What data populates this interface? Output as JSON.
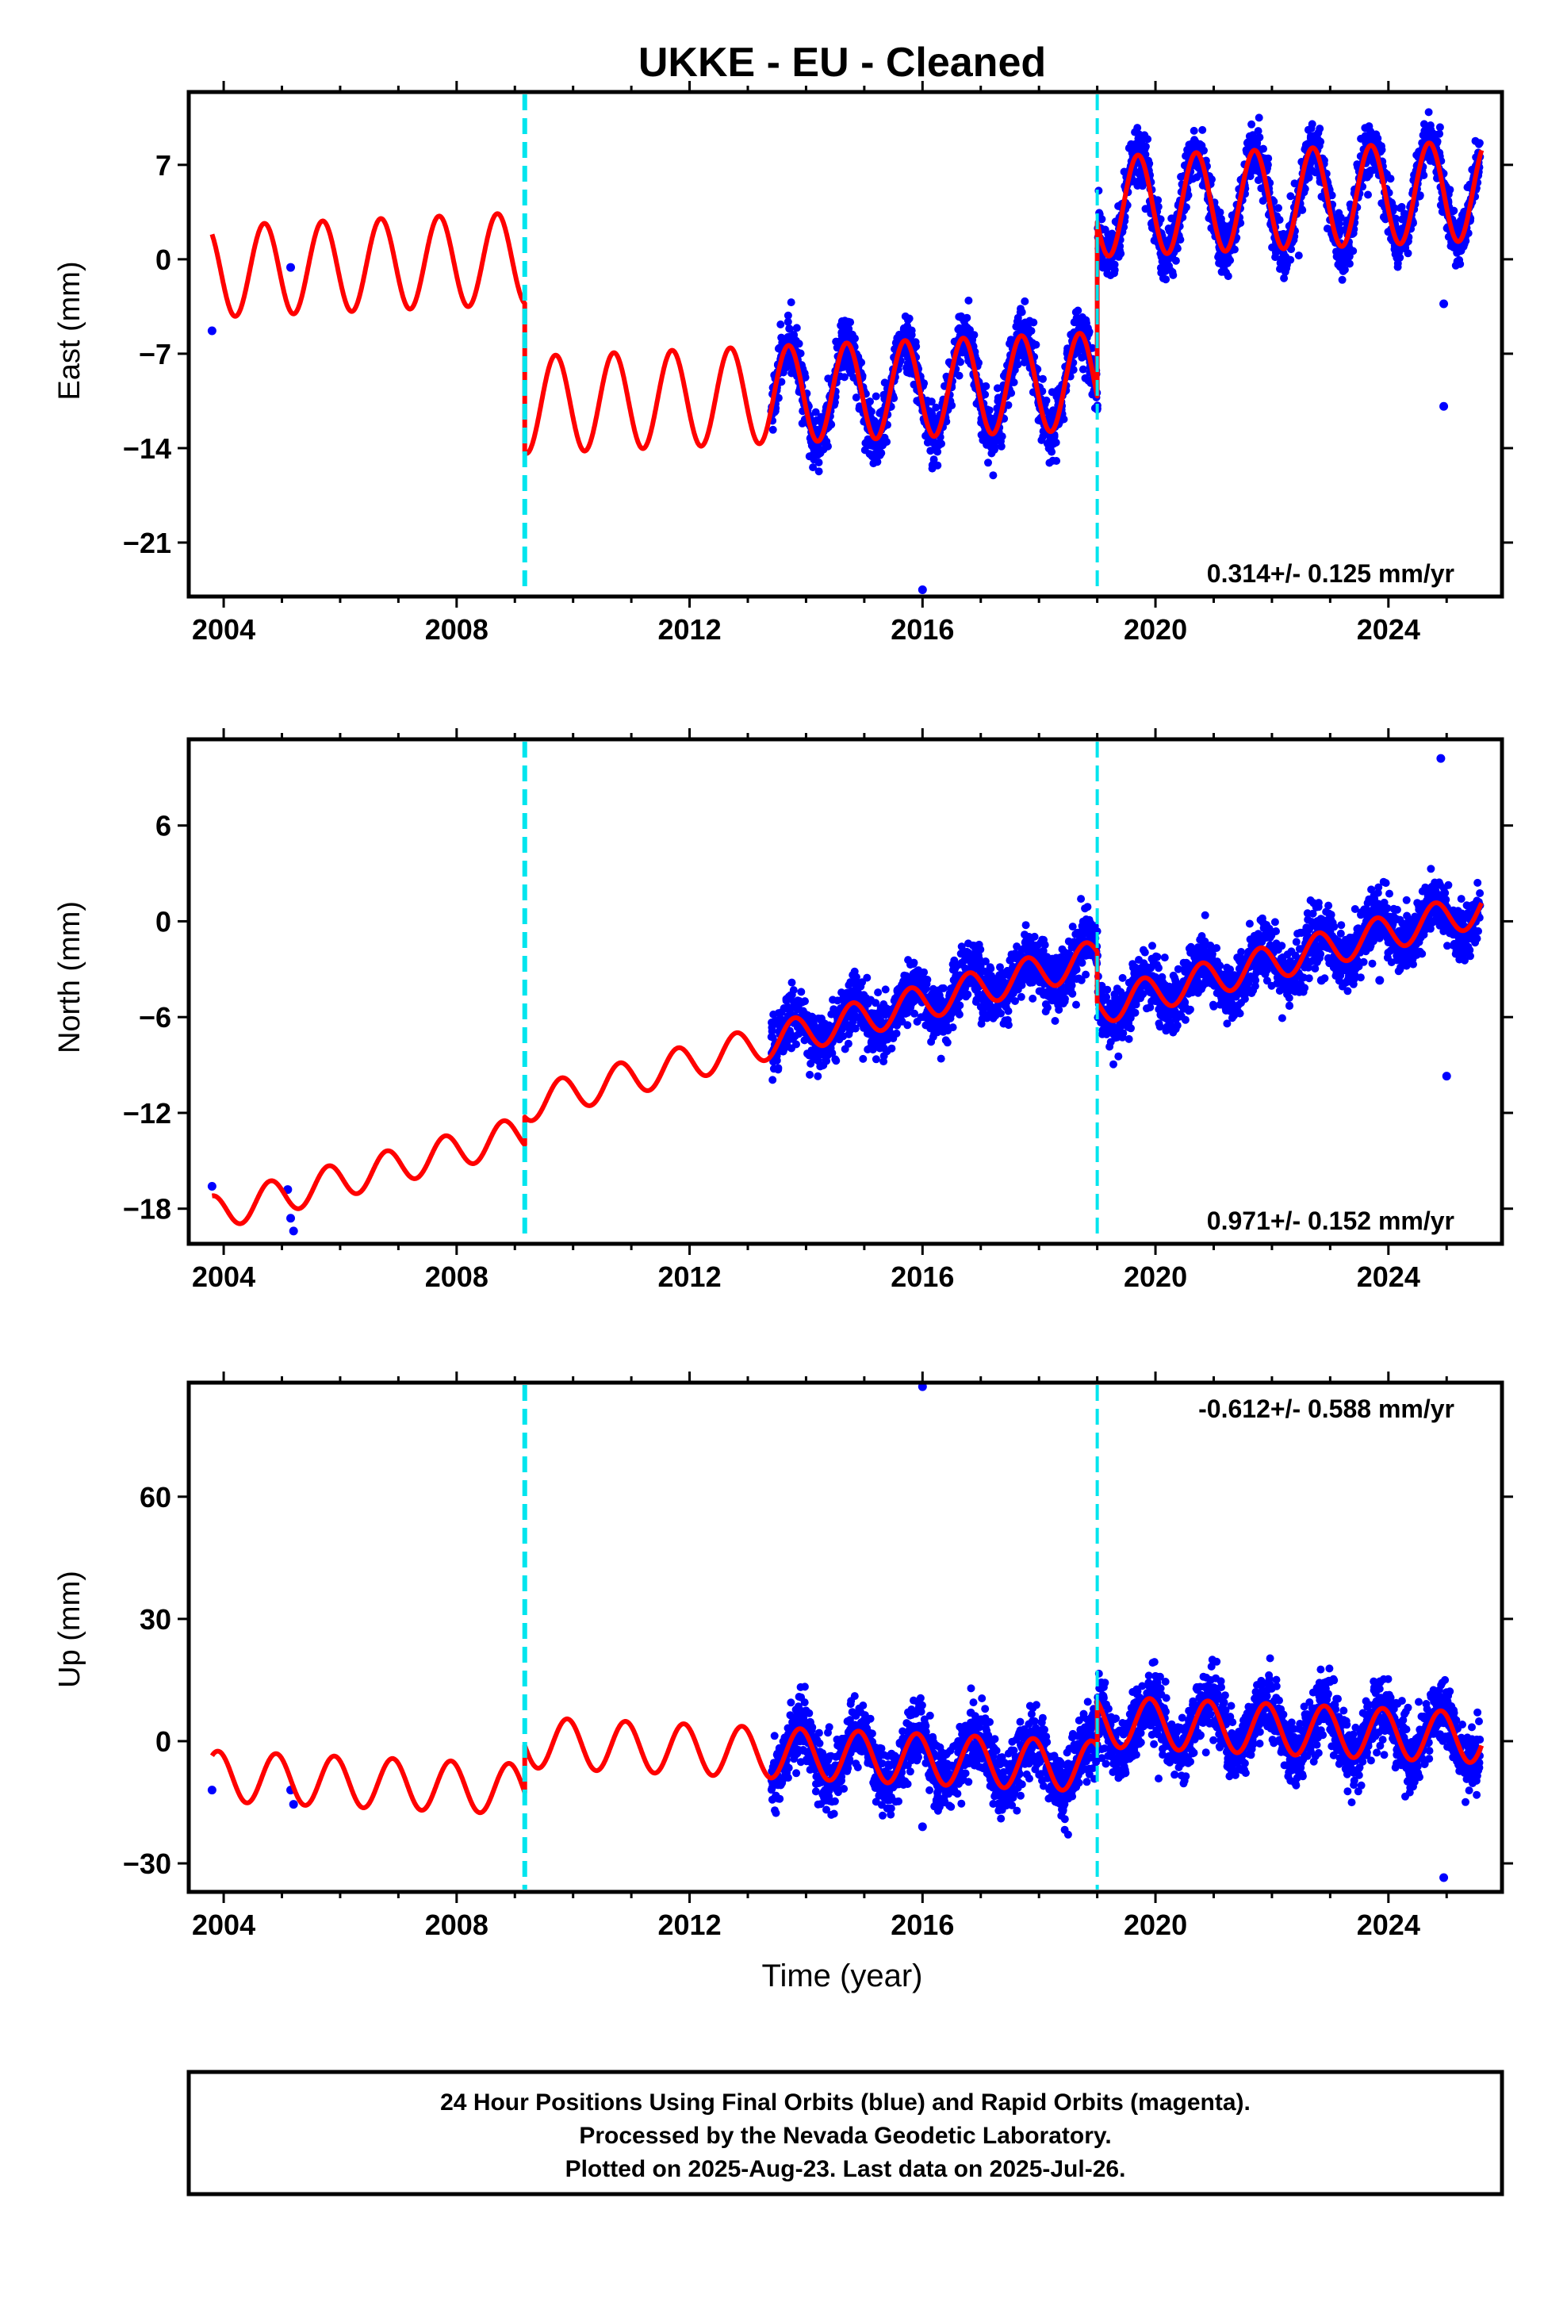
{
  "page_title": "UKKE  - EU - Cleaned",
  "colors": {
    "final_orbits": "#0000ff",
    "model": "#ff0000",
    "break_lines": "#00e5ee",
    "axes": "#000000"
  },
  "x_axis": {
    "label": "Time (year)",
    "range": [
      2003.4,
      2025.95
    ],
    "major_ticks": [
      2004,
      2008,
      2012,
      2016,
      2020,
      2024
    ],
    "tick_labels": [
      "2004",
      "2008",
      "2012",
      "2016",
      "2020",
      "2024"
    ]
  },
  "breaks": [
    2009.17,
    2019.0
  ],
  "chart_data": [
    {
      "type": "scatter",
      "component": "east",
      "ylabel": "East (mm)",
      "ylim": [
        -25.0,
        12.4
      ],
      "yticks": [
        -21,
        -14,
        -7,
        0,
        7
      ],
      "ytick_labels": [
        "−21",
        "−14",
        "−7",
        "0",
        "7"
      ],
      "rate_label": "0.314+/- 0.125 mm/yr",
      "rate_position": "bottom-right",
      "model_segments": [
        {
          "x_start": 2003.8,
          "x_end": 2009.17,
          "offset": -0.9,
          "trend": 0.18,
          "amplitude": 3.4,
          "phase_year": 2004.45
        },
        {
          "x_start": 2009.17,
          "x_end": 2019.0,
          "offset": -10.8,
          "trend": 0.18,
          "amplitude": 3.6,
          "phase_year": 2004.45
        },
        {
          "x_start": 2019.0,
          "x_end": 2025.6,
          "offset": 3.9,
          "trend": 0.18,
          "amplitude": 3.7,
          "phase_year": 2004.45
        }
      ],
      "data_start": 2013.4,
      "data_end": 2025.57,
      "noise_mm": 1.0,
      "outliers": [
        [
          2003.8,
          -5.3
        ],
        [
          2005.15,
          -0.6
        ],
        [
          2016.0,
          -24.5
        ],
        [
          2024.95,
          -3.3
        ],
        [
          2024.95,
          -10.9
        ]
      ]
    },
    {
      "type": "scatter",
      "component": "north",
      "ylabel": "North (mm)",
      "ylim": [
        -20.2,
        11.4
      ],
      "yticks": [
        -18,
        -12,
        -6,
        0,
        6
      ],
      "ytick_labels": [
        "−18",
        "−12",
        "−6",
        "0",
        "6"
      ],
      "rate_label": "0.971+/- 0.152 mm/yr",
      "rate_position": "bottom-right",
      "model_segments": [
        {
          "x_start": 2003.8,
          "x_end": 2009.17,
          "offset": -18.3,
          "trend": 0.94,
          "amplitude": 1.1,
          "phase_year": 2004.55
        },
        {
          "x_start": 2009.17,
          "x_end": 2019.0,
          "offset": -11.5,
          "trend": 0.94,
          "amplitude": 1.1,
          "phase_year": 2004.55
        },
        {
          "x_start": 2019.0,
          "x_end": 2025.6,
          "offset": -5.4,
          "trend": 0.94,
          "amplitude": 1.1,
          "phase_year": 2004.55
        }
      ],
      "data_start": 2013.4,
      "data_end": 2025.57,
      "noise_mm": 0.9,
      "outliers": [
        [
          2003.8,
          -16.6
        ],
        [
          2005.1,
          -16.8
        ],
        [
          2005.15,
          -18.6
        ],
        [
          2005.2,
          -19.4
        ],
        [
          2024.9,
          10.2
        ],
        [
          2025.0,
          -9.7
        ],
        [
          2022.85,
          -3.7
        ],
        [
          2023.85,
          -3.7
        ]
      ]
    },
    {
      "type": "scatter",
      "component": "up",
      "ylabel": "Up (mm)",
      "ylim": [
        -37.0,
        88.0
      ],
      "yticks": [
        -30,
        0,
        30,
        60
      ],
      "ytick_labels": [
        "−30",
        "0",
        "30",
        "60"
      ],
      "rate_label": "-0.612+/- 0.588 mm/yr",
      "rate_position": "top-right",
      "model_segments": [
        {
          "x_start": 2003.8,
          "x_end": 2009.17,
          "offset": -8.6,
          "trend": -0.6,
          "amplitude": 6.2,
          "phase_year": 2004.65
        },
        {
          "x_start": 2009.17,
          "x_end": 2019.0,
          "offset": -0.3,
          "trend": -0.6,
          "amplitude": 6.2,
          "phase_year": 2004.65
        },
        {
          "x_start": 2019.0,
          "x_end": 2025.6,
          "offset": 4.8,
          "trend": -0.6,
          "amplitude": 6.2,
          "phase_year": 2004.65
        }
      ],
      "data_start": 2013.4,
      "data_end": 2025.57,
      "noise_mm": 4.0,
      "outliers": [
        [
          2003.8,
          -12.0
        ],
        [
          2005.15,
          -12.0
        ],
        [
          2005.2,
          -15.5
        ],
        [
          2016.0,
          87.0
        ],
        [
          2024.95,
          -33.5
        ],
        [
          2016.0,
          -21.0
        ]
      ]
    }
  ],
  "footer": {
    "line1": "24 Hour Positions Using Final Orbits (blue) and Rapid Orbits (magenta).",
    "line2": "Processed by the Nevada Geodetic Laboratory.",
    "line3": "Plotted on 2025-Aug-23. Last data on 2025-Jul-26."
  }
}
